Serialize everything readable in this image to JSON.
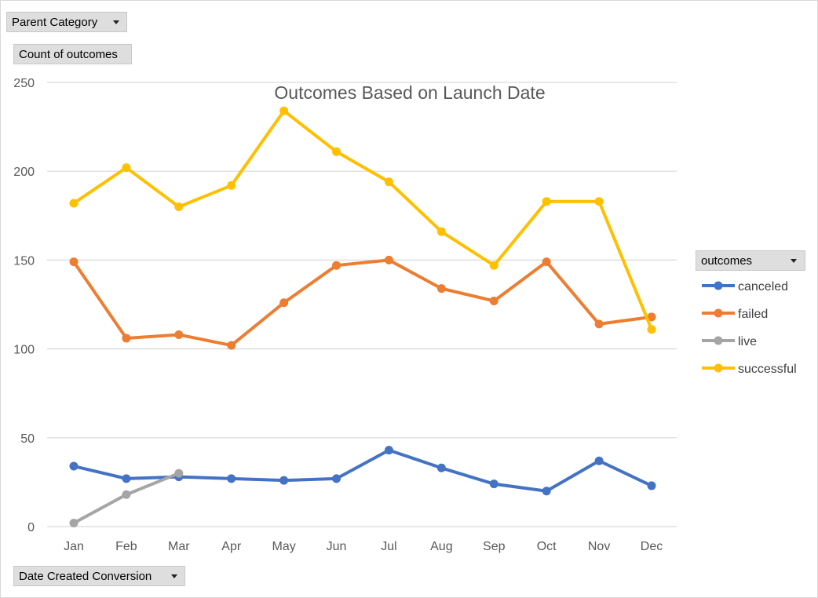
{
  "pivot": {
    "filter_field": "Parent Category",
    "value_field": "Count of outcomes",
    "axis_field": "Date Created Conversion",
    "legend_field": "outcomes"
  },
  "chart_data": {
    "type": "line",
    "title": "Outcomes Based on Launch Date",
    "xlabel": "",
    "ylabel": "",
    "categories": [
      "Jan",
      "Feb",
      "Mar",
      "Apr",
      "May",
      "Jun",
      "Jul",
      "Aug",
      "Sep",
      "Oct",
      "Nov",
      "Dec"
    ],
    "ylim": [
      0,
      250
    ],
    "yticks": [
      0,
      50,
      100,
      150,
      200,
      250
    ],
    "grid": true,
    "legend_position": "right",
    "series": [
      {
        "name": "canceled",
        "color": "#4472c4",
        "values": [
          34,
          27,
          28,
          27,
          26,
          27,
          43,
          33,
          24,
          20,
          37,
          23
        ]
      },
      {
        "name": "failed",
        "color": "#ed7d31",
        "values": [
          149,
          106,
          108,
          102,
          126,
          147,
          150,
          134,
          127,
          149,
          114,
          118
        ]
      },
      {
        "name": "live",
        "color": "#a5a5a5",
        "values": [
          2,
          18,
          30,
          null,
          null,
          null,
          null,
          null,
          null,
          null,
          null,
          null
        ]
      },
      {
        "name": "successful",
        "color": "#ffc000",
        "values": [
          182,
          202,
          180,
          192,
          234,
          211,
          194,
          166,
          147,
          183,
          183,
          111
        ]
      }
    ]
  }
}
